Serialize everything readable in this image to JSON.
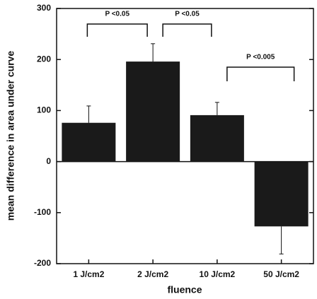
{
  "chart_data": {
    "type": "bar",
    "x_label": "fluence",
    "y_label": "mean difference in area under curve",
    "categories": [
      "1 J/cm2",
      "2 J/cm2",
      "10 J/cm2",
      "50 J/cm2"
    ],
    "values": [
      76,
      196,
      91,
      -127
    ],
    "errors": [
      33,
      35,
      25,
      54
    ],
    "color": "#1a1a1a",
    "ylim": [
      -200,
      300
    ],
    "yticks": [
      -200,
      -100,
      0,
      100,
      200,
      300
    ],
    "annotations": [
      {
        "text": "P <0.05",
        "between": [
          "1 J/cm2",
          "2 J/cm2"
        ]
      },
      {
        "text": "P <0.05",
        "between": [
          "2 J/cm2",
          "10 J/cm2"
        ]
      },
      {
        "text": "P <0.005",
        "between": [
          "10 J/cm2",
          "50 J/cm2"
        ]
      }
    ]
  }
}
